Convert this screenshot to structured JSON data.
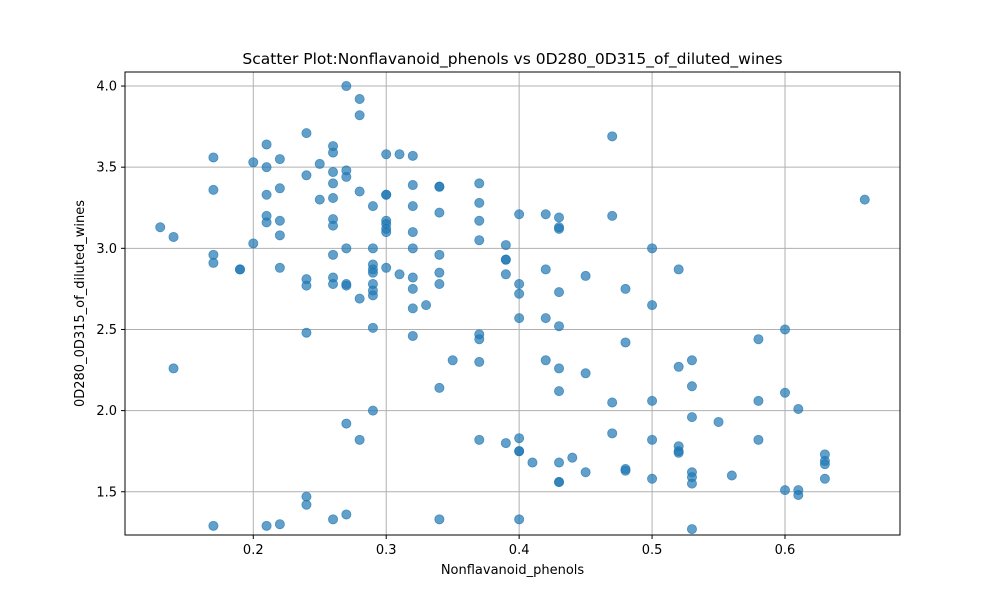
{
  "chart_data": {
    "type": "scatter",
    "title": "Scatter Plot:Nonflavanoid_phenols vs 0D280_0D315_of_diluted_wines",
    "xlabel": "Nonflavanoid_phenols",
    "ylabel": "0D280_0D315_of_diluted_wines",
    "xlim": [
      0.1035,
      0.6865
    ],
    "ylim": [
      1.2335,
      4.0865
    ],
    "xticks": [
      0.2,
      0.3,
      0.4,
      0.5,
      0.6
    ],
    "xtick_labels": [
      "0.2",
      "0.3",
      "0.4",
      "0.5",
      "0.6"
    ],
    "yticks": [
      1.5,
      2.0,
      2.5,
      3.0,
      3.5,
      4.0
    ],
    "ytick_labels": [
      "1.5",
      "2.0",
      "2.5",
      "3.0",
      "3.5",
      "4.0"
    ],
    "grid": true,
    "marker_color": "#1f77b4",
    "marker_alpha": 0.7,
    "points": [
      [
        0.13,
        3.13
      ],
      [
        0.14,
        3.07
      ],
      [
        0.14,
        2.26
      ],
      [
        0.17,
        3.56
      ],
      [
        0.17,
        3.36
      ],
      [
        0.17,
        2.96
      ],
      [
        0.17,
        2.91
      ],
      [
        0.17,
        1.29
      ],
      [
        0.19,
        2.87
      ],
      [
        0.19,
        2.87
      ],
      [
        0.2,
        3.53
      ],
      [
        0.2,
        3.03
      ],
      [
        0.21,
        3.64
      ],
      [
        0.21,
        3.5
      ],
      [
        0.21,
        3.33
      ],
      [
        0.21,
        3.2
      ],
      [
        0.21,
        3.16
      ],
      [
        0.21,
        1.29
      ],
      [
        0.22,
        3.55
      ],
      [
        0.22,
        3.37
      ],
      [
        0.22,
        3.17
      ],
      [
        0.22,
        3.08
      ],
      [
        0.22,
        2.88
      ],
      [
        0.22,
        1.3
      ],
      [
        0.24,
        3.71
      ],
      [
        0.24,
        3.45
      ],
      [
        0.24,
        2.81
      ],
      [
        0.24,
        2.77
      ],
      [
        0.24,
        2.48
      ],
      [
        0.24,
        1.47
      ],
      [
        0.24,
        1.42
      ],
      [
        0.25,
        3.52
      ],
      [
        0.25,
        3.3
      ],
      [
        0.26,
        3.63
      ],
      [
        0.26,
        3.59
      ],
      [
        0.26,
        3.47
      ],
      [
        0.26,
        3.4
      ],
      [
        0.26,
        3.31
      ],
      [
        0.26,
        3.18
      ],
      [
        0.26,
        3.14
      ],
      [
        0.26,
        2.96
      ],
      [
        0.26,
        2.82
      ],
      [
        0.26,
        2.78
      ],
      [
        0.26,
        1.33
      ],
      [
        0.27,
        4.0
      ],
      [
        0.27,
        3.48
      ],
      [
        0.27,
        3.44
      ],
      [
        0.27,
        3.0
      ],
      [
        0.27,
        2.78
      ],
      [
        0.27,
        2.77
      ],
      [
        0.27,
        1.92
      ],
      [
        0.27,
        1.36
      ],
      [
        0.28,
        3.92
      ],
      [
        0.28,
        3.82
      ],
      [
        0.28,
        3.35
      ],
      [
        0.28,
        2.69
      ],
      [
        0.28,
        1.82
      ],
      [
        0.29,
        3.26
      ],
      [
        0.29,
        3.0
      ],
      [
        0.29,
        2.9
      ],
      [
        0.29,
        2.87
      ],
      [
        0.29,
        2.85
      ],
      [
        0.29,
        2.78
      ],
      [
        0.29,
        2.74
      ],
      [
        0.29,
        2.71
      ],
      [
        0.29,
        2.51
      ],
      [
        0.29,
        2.0
      ],
      [
        0.3,
        3.58
      ],
      [
        0.3,
        3.33
      ],
      [
        0.3,
        3.33
      ],
      [
        0.3,
        3.17
      ],
      [
        0.3,
        3.15
      ],
      [
        0.3,
        3.12
      ],
      [
        0.3,
        3.1
      ],
      [
        0.3,
        2.88
      ],
      [
        0.31,
        3.58
      ],
      [
        0.31,
        2.84
      ],
      [
        0.32,
        3.57
      ],
      [
        0.32,
        3.39
      ],
      [
        0.32,
        3.26
      ],
      [
        0.32,
        3.1
      ],
      [
        0.32,
        3.0
      ],
      [
        0.32,
        2.82
      ],
      [
        0.32,
        2.75
      ],
      [
        0.32,
        2.63
      ],
      [
        0.32,
        2.46
      ],
      [
        0.33,
        2.65
      ],
      [
        0.34,
        3.38
      ],
      [
        0.34,
        3.38
      ],
      [
        0.34,
        3.22
      ],
      [
        0.34,
        2.96
      ],
      [
        0.34,
        2.85
      ],
      [
        0.34,
        2.78
      ],
      [
        0.34,
        2.14
      ],
      [
        0.34,
        1.33
      ],
      [
        0.35,
        2.31
      ],
      [
        0.37,
        3.4
      ],
      [
        0.37,
        3.28
      ],
      [
        0.37,
        3.17
      ],
      [
        0.37,
        3.05
      ],
      [
        0.37,
        2.47
      ],
      [
        0.37,
        2.44
      ],
      [
        0.37,
        2.3
      ],
      [
        0.37,
        1.82
      ],
      [
        0.39,
        3.02
      ],
      [
        0.39,
        2.93
      ],
      [
        0.39,
        2.93
      ],
      [
        0.39,
        2.84
      ],
      [
        0.39,
        1.8
      ],
      [
        0.4,
        3.21
      ],
      [
        0.4,
        2.78
      ],
      [
        0.4,
        2.72
      ],
      [
        0.4,
        2.57
      ],
      [
        0.4,
        1.83
      ],
      [
        0.4,
        1.75
      ],
      [
        0.4,
        1.75
      ],
      [
        0.4,
        1.33
      ],
      [
        0.41,
        1.68
      ],
      [
        0.42,
        3.21
      ],
      [
        0.42,
        2.87
      ],
      [
        0.42,
        2.57
      ],
      [
        0.42,
        2.31
      ],
      [
        0.43,
        3.19
      ],
      [
        0.43,
        3.13
      ],
      [
        0.43,
        3.12
      ],
      [
        0.43,
        2.73
      ],
      [
        0.43,
        2.52
      ],
      [
        0.43,
        2.26
      ],
      [
        0.43,
        2.12
      ],
      [
        0.43,
        1.68
      ],
      [
        0.43,
        1.56
      ],
      [
        0.43,
        1.56
      ],
      [
        0.44,
        1.71
      ],
      [
        0.45,
        2.83
      ],
      [
        0.45,
        2.23
      ],
      [
        0.45,
        1.62
      ],
      [
        0.47,
        3.69
      ],
      [
        0.47,
        3.2
      ],
      [
        0.47,
        2.05
      ],
      [
        0.47,
        1.86
      ],
      [
        0.48,
        2.75
      ],
      [
        0.48,
        2.42
      ],
      [
        0.48,
        1.64
      ],
      [
        0.48,
        1.63
      ],
      [
        0.5,
        3.0
      ],
      [
        0.5,
        2.65
      ],
      [
        0.5,
        2.06
      ],
      [
        0.5,
        1.82
      ],
      [
        0.5,
        1.58
      ],
      [
        0.52,
        2.87
      ],
      [
        0.52,
        2.27
      ],
      [
        0.52,
        1.78
      ],
      [
        0.52,
        1.75
      ],
      [
        0.52,
        1.74
      ],
      [
        0.53,
        2.31
      ],
      [
        0.53,
        2.15
      ],
      [
        0.53,
        1.96
      ],
      [
        0.53,
        1.62
      ],
      [
        0.53,
        1.59
      ],
      [
        0.53,
        1.55
      ],
      [
        0.53,
        1.27
      ],
      [
        0.55,
        1.93
      ],
      [
        0.56,
        1.6
      ],
      [
        0.58,
        2.44
      ],
      [
        0.58,
        2.06
      ],
      [
        0.58,
        1.82
      ],
      [
        0.6,
        2.5
      ],
      [
        0.6,
        2.11
      ],
      [
        0.6,
        1.51
      ],
      [
        0.61,
        2.01
      ],
      [
        0.61,
        1.51
      ],
      [
        0.61,
        1.48
      ],
      [
        0.63,
        1.73
      ],
      [
        0.63,
        1.69
      ],
      [
        0.63,
        1.67
      ],
      [
        0.63,
        1.58
      ],
      [
        0.66,
        3.3
      ]
    ]
  }
}
